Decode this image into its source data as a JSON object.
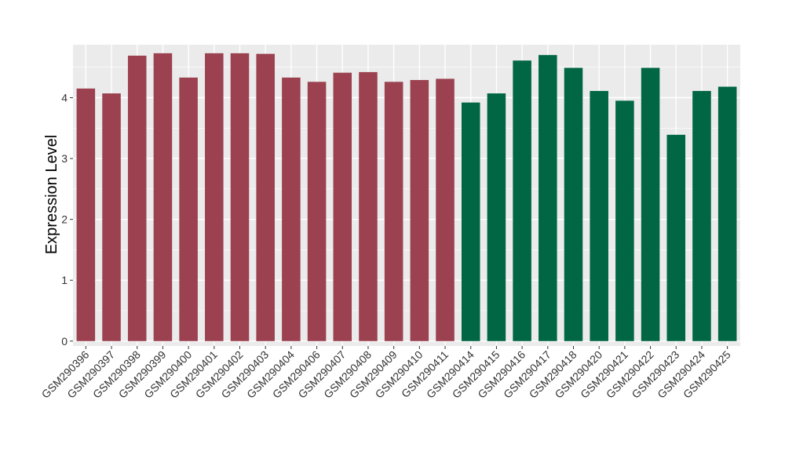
{
  "chart_data": {
    "type": "bar",
    "title": "",
    "xlabel": "",
    "ylabel": "Expression Level",
    "ylim": [
      -0.08,
      4.87
    ],
    "yticks": [
      0,
      1,
      2,
      3,
      4
    ],
    "grid": true,
    "legend": "none",
    "categories": [
      "GSM290396",
      "GSM290397",
      "GSM290398",
      "GSM290399",
      "GSM290400",
      "GSM290401",
      "GSM290402",
      "GSM290403",
      "GSM290404",
      "GSM290406",
      "GSM290407",
      "GSM290408",
      "GSM290409",
      "GSM290410",
      "GSM290411",
      "GSM290414",
      "GSM290415",
      "GSM290416",
      "GSM290417",
      "GSM290418",
      "GSM290420",
      "GSM290421",
      "GSM290422",
      "GSM290423",
      "GSM290424",
      "GSM290425"
    ],
    "values": [
      4.15,
      4.07,
      4.69,
      4.73,
      4.33,
      4.73,
      4.73,
      4.72,
      4.33,
      4.26,
      4.41,
      4.42,
      4.26,
      4.29,
      4.31,
      3.92,
      4.07,
      4.61,
      4.7,
      4.49,
      4.11,
      3.95,
      4.49,
      3.39,
      4.11,
      4.18
    ],
    "bar_colors": [
      "#9B4150",
      "#9B4150",
      "#9B4150",
      "#9B4150",
      "#9B4150",
      "#9B4150",
      "#9B4150",
      "#9B4150",
      "#9B4150",
      "#9B4150",
      "#9B4150",
      "#9B4150",
      "#9B4150",
      "#9B4150",
      "#9B4150",
      "#006644",
      "#006644",
      "#006644",
      "#006644",
      "#006644",
      "#006644",
      "#006644",
      "#006644",
      "#006644",
      "#006644",
      "#006644"
    ],
    "panel_background": "#EBEBEB",
    "gridline_color": "#FFFFFF"
  }
}
